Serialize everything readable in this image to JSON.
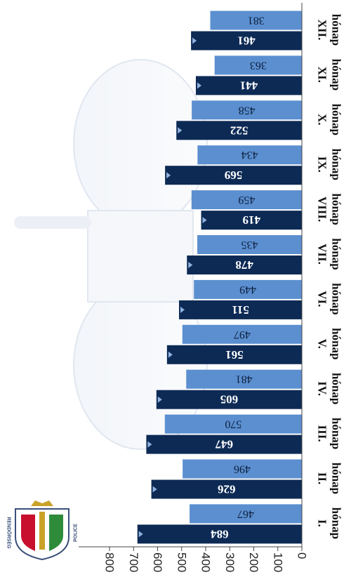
{
  "chart_data": {
    "type": "bar",
    "orientation": "horizontal",
    "categories": [
      "I. hónap",
      "II. hónap",
      "III. hónap",
      "IV. hónap",
      "V. hónap",
      "VI. hónap",
      "VII. hónap",
      "VIII. hónap",
      "IX. hónap",
      "X. hónap",
      "XI. hónap",
      "XII. hónap"
    ],
    "category_lines": [
      [
        "I.",
        "hónap"
      ],
      [
        "II.",
        "hónap"
      ],
      [
        "III.",
        "hónap"
      ],
      [
        "IV.",
        "hónap"
      ],
      [
        "V.",
        "hónap"
      ],
      [
        "VI.",
        "hónap"
      ],
      [
        "VII.",
        "hónap"
      ],
      [
        "VIII.",
        "hónap"
      ],
      [
        "IX.",
        "hónap"
      ],
      [
        "X.",
        "hónap"
      ],
      [
        "XI.",
        "hónap"
      ],
      [
        "XII.",
        "hónap"
      ]
    ],
    "series": [
      {
        "values": [
          684,
          626,
          647,
          605,
          561,
          511,
          478,
          419,
          569,
          522,
          441,
          461
        ],
        "color": "#0d2a55"
      },
      {
        "values": [
          467,
          496,
          570,
          481,
          497,
          449,
          435,
          459,
          434,
          458,
          363,
          381
        ],
        "color": "#5b8fd0"
      }
    ],
    "ticks": [
      "0",
      "100",
      "200",
      "300",
      "400",
      "500",
      "600",
      "700",
      "800"
    ],
    "xlim": [
      0,
      800
    ],
    "grid": false,
    "legend": "none",
    "rotation": "page rotated 90° clockwise; value axis along the bottom, months top-to-bottom from right",
    "emblem_text": "RENDŐRSÉG POLICE"
  }
}
